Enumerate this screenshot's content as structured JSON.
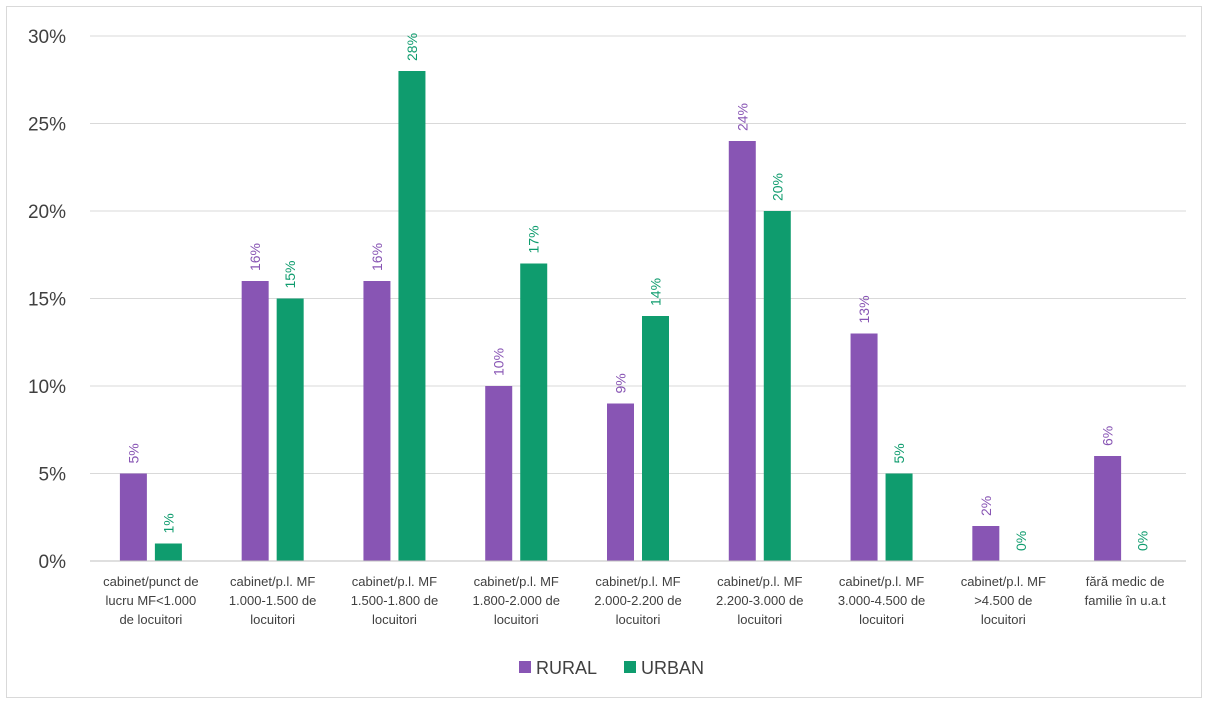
{
  "chart_data": {
    "type": "bar",
    "title": "",
    "xlabel": "",
    "ylabel": "",
    "ylim": [
      0,
      30
    ],
    "y_ticks": [
      0,
      5,
      10,
      15,
      20,
      25,
      30
    ],
    "y_tick_format": "percent",
    "grid": true,
    "legend_position": "bottom",
    "categories": [
      [
        "cabinet/punct de",
        "lucru MF<1.000",
        "de locuitori"
      ],
      [
        "cabinet/p.l. MF",
        "1.000-1.500 de",
        "locuitori"
      ],
      [
        "cabinet/p.l. MF",
        "1.500-1.800 de",
        "locuitori"
      ],
      [
        "cabinet/p.l. MF",
        "1.800-2.000 de",
        "locuitori"
      ],
      [
        "cabinet/p.l. MF",
        "2.000-2.200 de",
        "locuitori"
      ],
      [
        "cabinet/p.l. MF",
        "2.200-3.000 de",
        "locuitori"
      ],
      [
        "cabinet/p.l. MF",
        "3.000-4.500 de",
        "locuitori"
      ],
      [
        "cabinet/p.l. MF",
        ">4.500 de",
        "locuitori"
      ],
      [
        "fără medic de",
        "familie în u.a.t"
      ]
    ],
    "series": [
      {
        "name": "RURAL",
        "color": "#8855b4",
        "values": [
          5,
          16,
          16,
          10,
          9,
          24,
          13,
          2,
          6
        ]
      },
      {
        "name": "URBAN",
        "color": "#0f9c6e",
        "values": [
          1,
          15,
          28,
          17,
          14,
          20,
          5,
          0,
          0
        ]
      }
    ]
  }
}
